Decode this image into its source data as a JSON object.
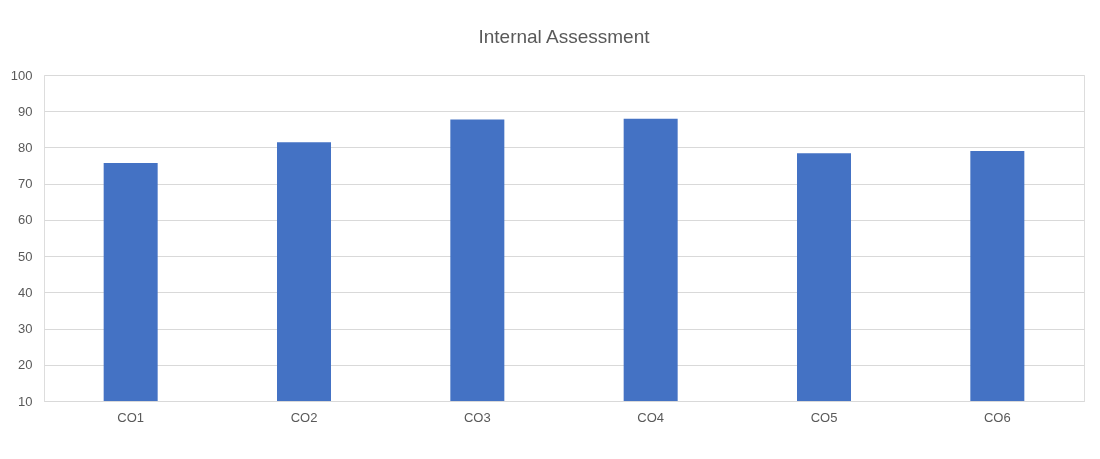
{
  "chart_data": {
    "type": "bar",
    "title": "Internal Assessment",
    "categories": [
      "CO1",
      "CO2",
      "CO3",
      "CO4",
      "CO5",
      "CO6"
    ],
    "values": [
      75.7,
      81.4,
      87.7,
      87.9,
      78.4,
      79.0
    ],
    "color": "#4472c4",
    "ylim": [
      10,
      100
    ],
    "yticks": [
      10,
      20,
      30,
      40,
      50,
      60,
      70,
      80,
      90,
      100
    ],
    "grid": "y"
  }
}
